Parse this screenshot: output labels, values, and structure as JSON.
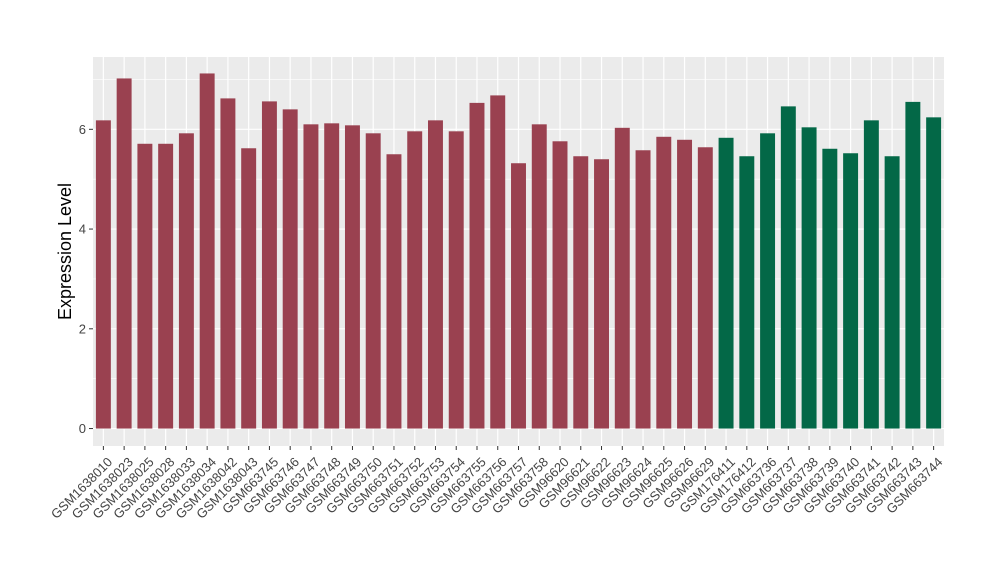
{
  "chart_data": {
    "type": "bar",
    "ylabel": "Expression Level",
    "xlabel": "",
    "ylim": [
      -0.35,
      7.45
    ],
    "yticks": [
      0,
      2,
      4,
      6
    ],
    "colors": {
      "group1": "#9a4150",
      "group2": "#036847",
      "panel": "#ebebeb",
      "grid": "#ffffff"
    },
    "categories": [
      "GSM1638010",
      "GSM1638023",
      "GSM1638025",
      "GSM1638028",
      "GSM1638033",
      "GSM1638034",
      "GSM1638042",
      "GSM1638043",
      "GSM663745",
      "GSM663746",
      "GSM663747",
      "GSM663748",
      "GSM663749",
      "GSM663750",
      "GSM663751",
      "GSM663752",
      "GSM663753",
      "GSM663754",
      "GSM663755",
      "GSM663756",
      "GSM663757",
      "GSM663758",
      "GSM96620",
      "GSM96621",
      "GSM96622",
      "GSM96623",
      "GSM96624",
      "GSM96625",
      "GSM96626",
      "GSM96629",
      "GSM176411",
      "GSM176412",
      "GSM663736",
      "GSM663737",
      "GSM663738",
      "GSM663739",
      "GSM663740",
      "GSM663741",
      "GSM663742",
      "GSM663743",
      "GSM663744"
    ],
    "values": [
      6.18,
      7.02,
      5.71,
      5.71,
      5.92,
      7.12,
      6.62,
      5.62,
      6.56,
      6.4,
      6.1,
      6.12,
      6.08,
      5.92,
      5.5,
      5.96,
      6.18,
      5.96,
      6.53,
      6.68,
      5.32,
      6.1,
      5.76,
      5.46,
      5.4,
      6.03,
      5.58,
      5.85,
      5.79,
      5.64,
      5.83,
      5.46,
      5.92,
      6.46,
      6.04,
      5.61,
      5.52,
      6.18,
      5.46,
      6.55,
      6.24
    ],
    "groups": [
      1,
      1,
      1,
      1,
      1,
      1,
      1,
      1,
      1,
      1,
      1,
      1,
      1,
      1,
      1,
      1,
      1,
      1,
      1,
      1,
      1,
      1,
      1,
      1,
      1,
      1,
      1,
      1,
      1,
      1,
      2,
      2,
      2,
      2,
      2,
      2,
      2,
      2,
      2,
      2,
      2
    ],
    "legend": "none",
    "grid": true
  }
}
